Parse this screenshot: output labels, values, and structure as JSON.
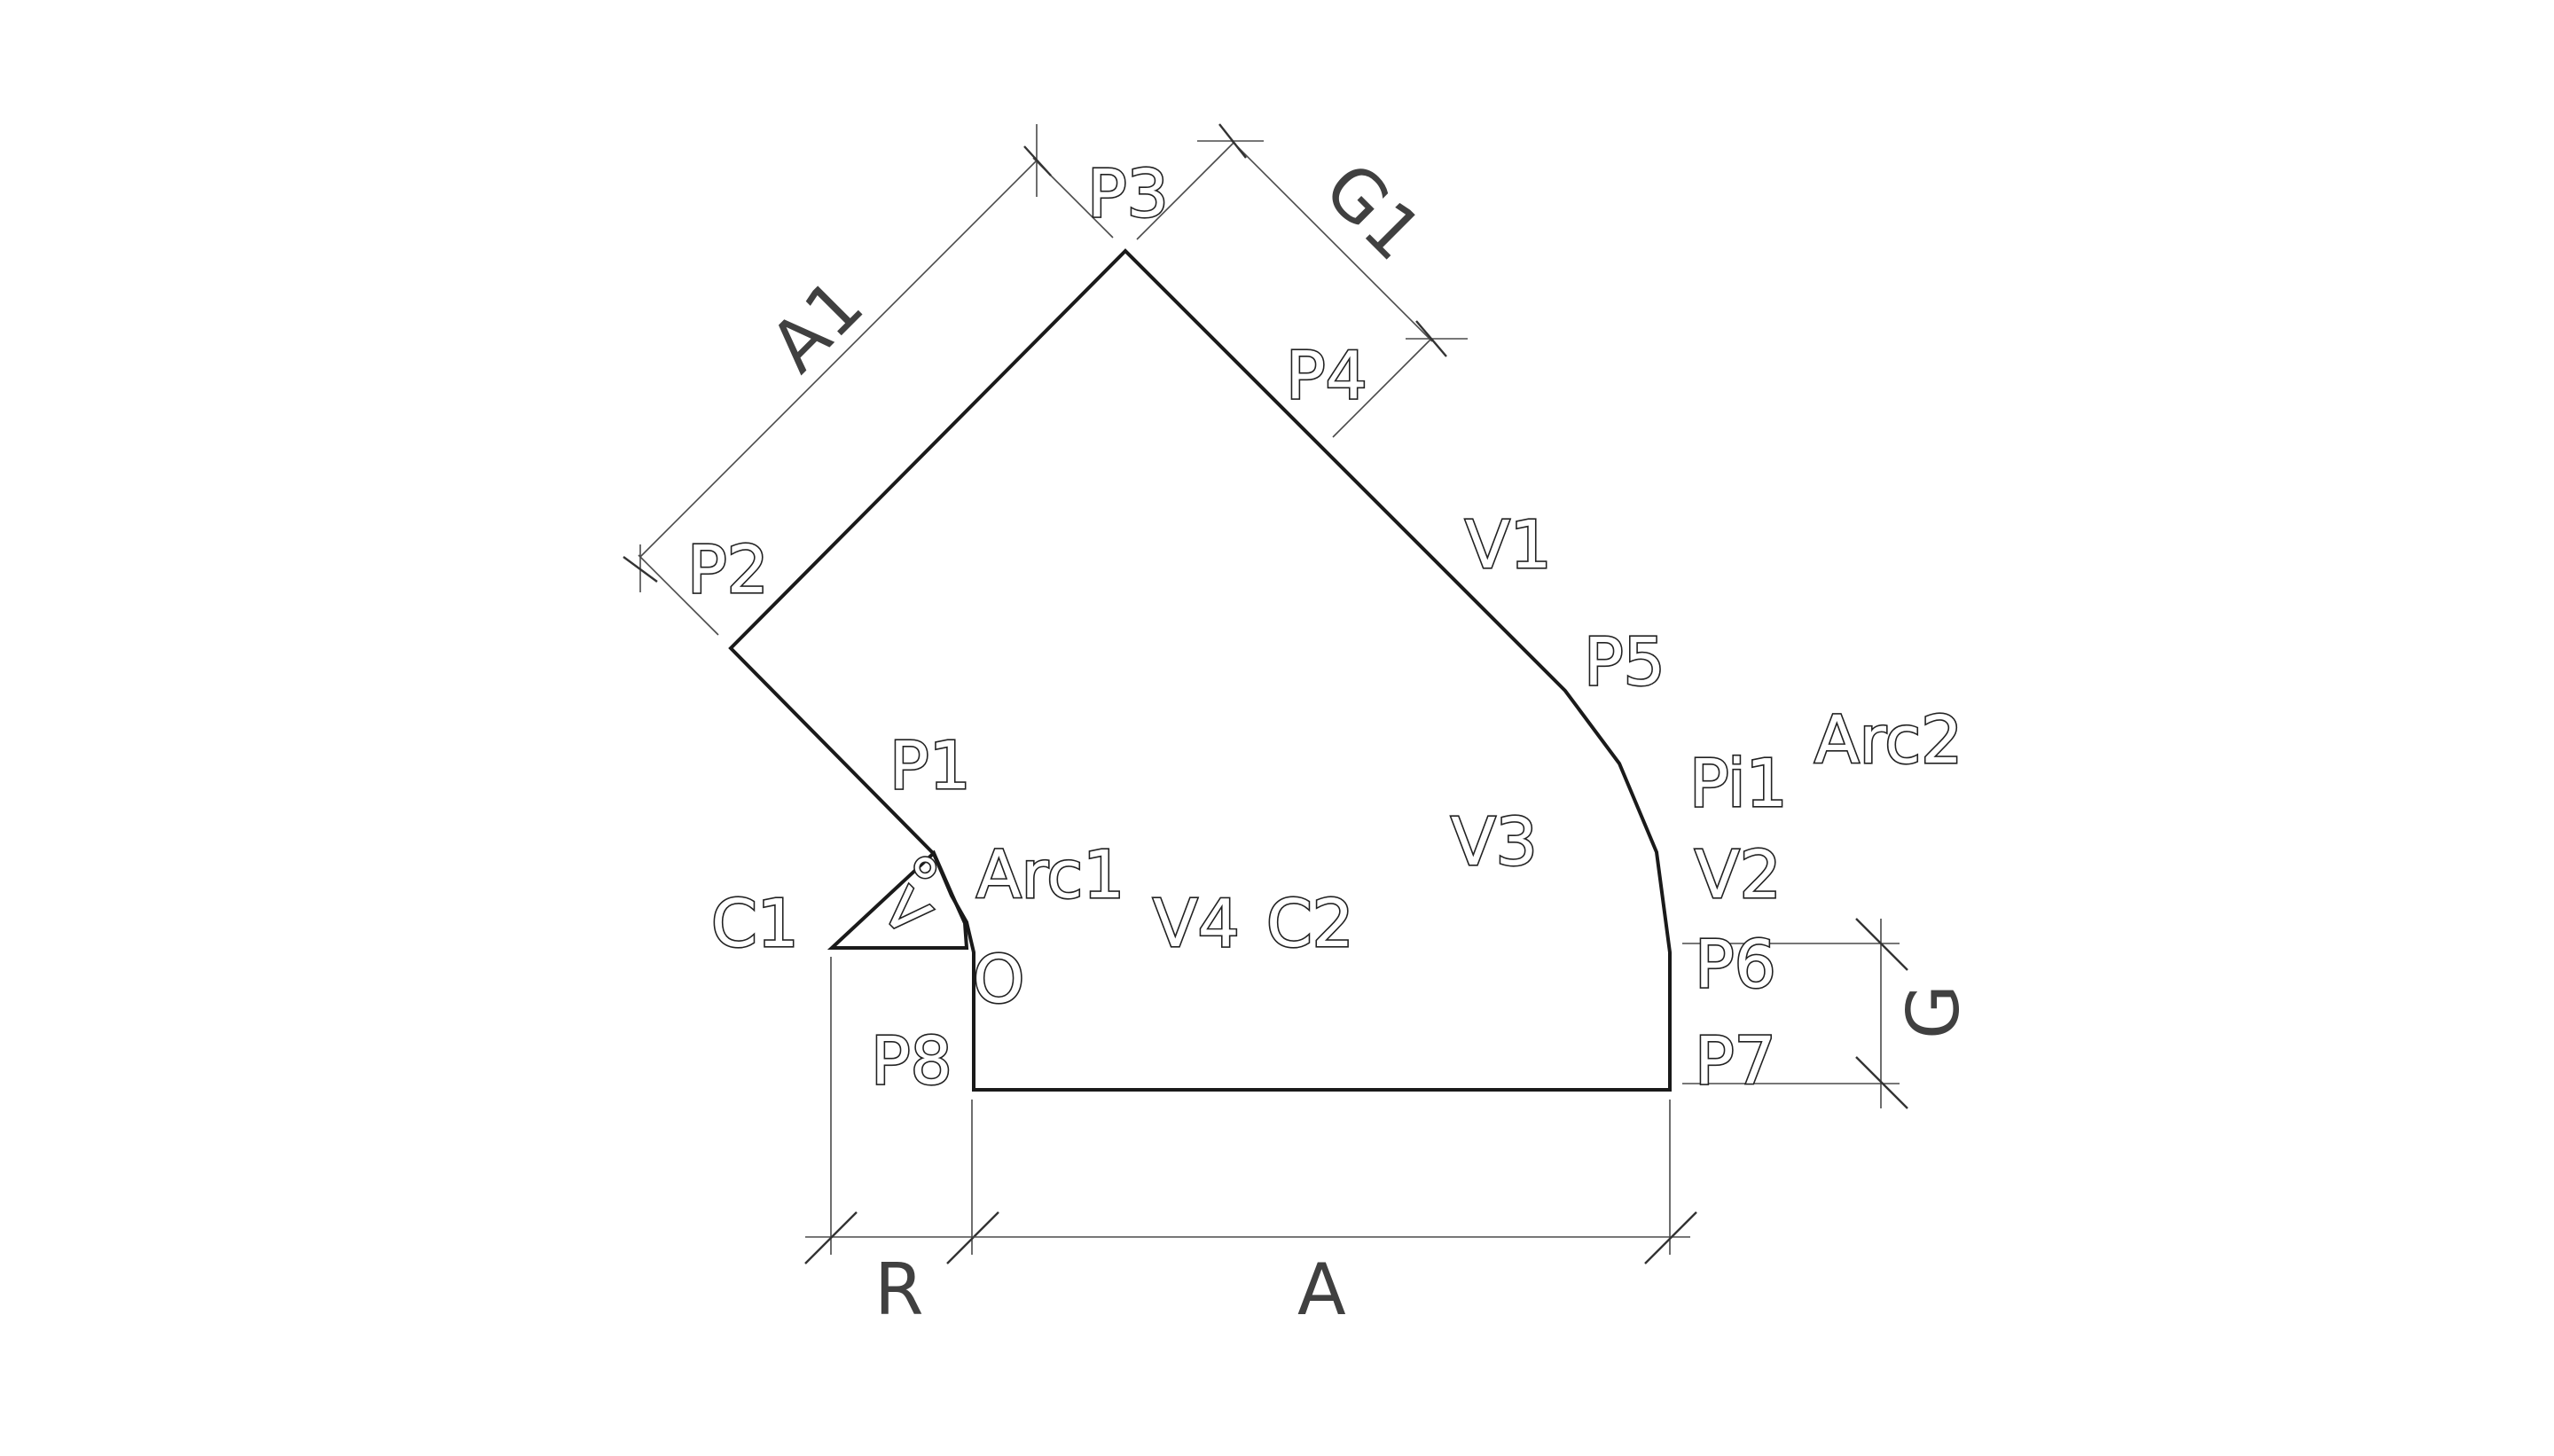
{
  "points": {
    "p1": "P1",
    "p2": "P2",
    "p3": "P3",
    "p4": "P4",
    "p5": "P5",
    "p6": "P6",
    "p7": "P7",
    "p8": "P8",
    "pi1": "Pi1",
    "origin": "O"
  },
  "elements": {
    "v1": "V1",
    "v2": "V2",
    "v3": "V3",
    "v4": "V4",
    "c1": "C1",
    "c2": "C2",
    "arc1": "Arc1",
    "arc2": "Arc2",
    "angle": "<°"
  },
  "dimensions": {
    "a": "A",
    "a1": "A1",
    "g": "G",
    "g1": "G1",
    "r": "R"
  }
}
